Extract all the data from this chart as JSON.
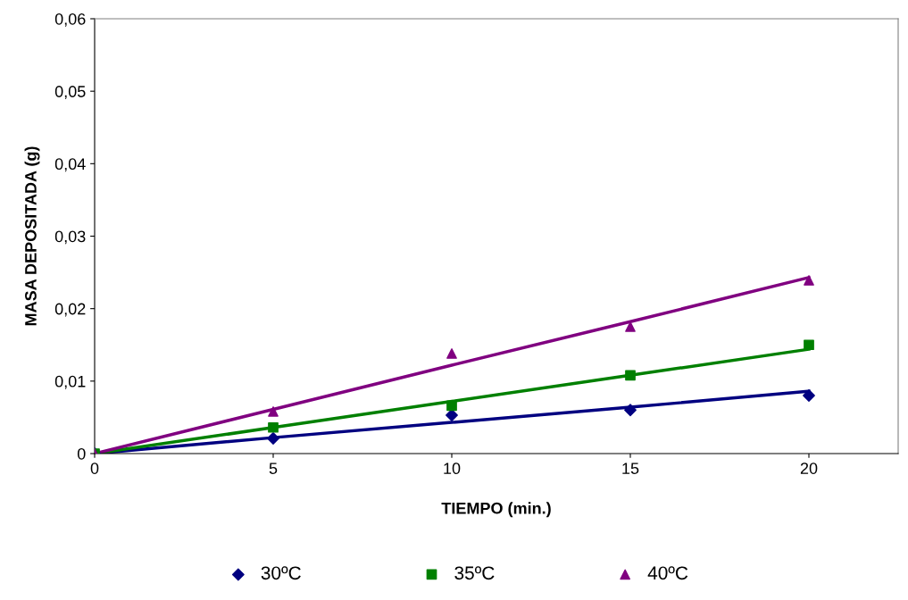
{
  "chart_data": {
    "type": "scatter",
    "xlabel": "TIEMPO (min.)",
    "ylabel": "MASA DEPOSITADA (g)",
    "x": [
      0,
      5,
      10,
      15,
      20
    ],
    "series": [
      {
        "name": "30ºC",
        "color": "#000080",
        "marker": "diamond",
        "values": [
          0,
          0.0021,
          0.0053,
          0.006,
          0.008
        ]
      },
      {
        "name": "35ºC",
        "color": "#008000",
        "marker": "square",
        "values": [
          0,
          0.0036,
          0.0066,
          0.0108,
          0.015
        ]
      },
      {
        "name": "40ºC",
        "color": "#800080",
        "marker": "triangle",
        "values": [
          0,
          0.0058,
          0.0138,
          0.0175,
          0.0239
        ]
      },
      {
        "type": "line",
        "color": "#000080",
        "values": [
          0,
          0.0022,
          0.0043,
          0.0064,
          0.0086
        ],
        "marker": "none"
      },
      {
        "type": "line",
        "color": "#008000",
        "values": [
          0,
          0.0036,
          0.0072,
          0.0108,
          0.0144
        ],
        "marker": "none"
      },
      {
        "type": "line",
        "color": "#800080",
        "values": [
          0,
          0.0061,
          0.0122,
          0.0182,
          0.0243
        ],
        "marker": "none"
      }
    ],
    "xlim": [
      0,
      22.5
    ],
    "xticks": [
      0,
      5,
      10,
      15,
      20
    ],
    "ylim": [
      0,
      0.06
    ],
    "yticks": [
      {
        "value": 0,
        "label": "0"
      },
      {
        "value": 0.01,
        "label": "0,01"
      },
      {
        "value": 0.02,
        "label": "0,02"
      },
      {
        "value": 0.03,
        "label": "0,03"
      },
      {
        "value": 0.04,
        "label": "0,04"
      },
      {
        "value": 0.05,
        "label": "0,05"
      },
      {
        "value": 0.06,
        "label": "0,06"
      }
    ],
    "grid": false,
    "legend": "bottom"
  }
}
